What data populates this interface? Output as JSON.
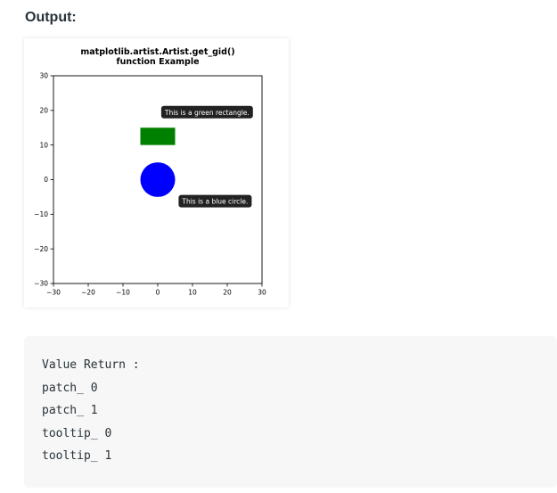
{
  "output_label": "Output:",
  "chart_data": {
    "type": "patches",
    "title": "matplotlib.artist.Artist.get_gid()\nfunction Example",
    "title_lines": [
      "matplotlib.artist.Artist.get_gid()",
      "function Example"
    ],
    "xlim": [
      -30,
      30
    ],
    "ylim": [
      -30,
      30
    ],
    "xticks": [
      -30,
      -20,
      -10,
      0,
      10,
      20,
      30
    ],
    "yticks": [
      30,
      20,
      10,
      0,
      -10,
      -20,
      -30
    ],
    "xtick_labels": [
      "−30",
      "−20",
      "−10",
      "0",
      "10",
      "20",
      "30"
    ],
    "ytick_labels": [
      "30",
      "20",
      "10",
      "0",
      "−10",
      "−20",
      "−30"
    ],
    "grid": false,
    "shapes": [
      {
        "kind": "rectangle",
        "x": -5,
        "y": 10,
        "width": 10,
        "height": 5,
        "color": "#008000",
        "gid": "patch_ 0"
      },
      {
        "kind": "circle",
        "cx": 0,
        "cy": 0,
        "r": 5,
        "color": "#0000ff",
        "gid": "patch_ 1"
      }
    ],
    "annotations": [
      {
        "text": "This is a green rectangle.",
        "x": 1,
        "y": 19.5,
        "gid": "tooltip_ 0"
      },
      {
        "text": "This is a blue circle.",
        "x": 6,
        "y": -6.2,
        "gid": "tooltip_ 1"
      }
    ]
  },
  "code_output": {
    "lines": [
      "Value Return :",
      "patch_ 0",
      "patch_ 1",
      "tooltip_ 0",
      "tooltip_ 1"
    ]
  }
}
